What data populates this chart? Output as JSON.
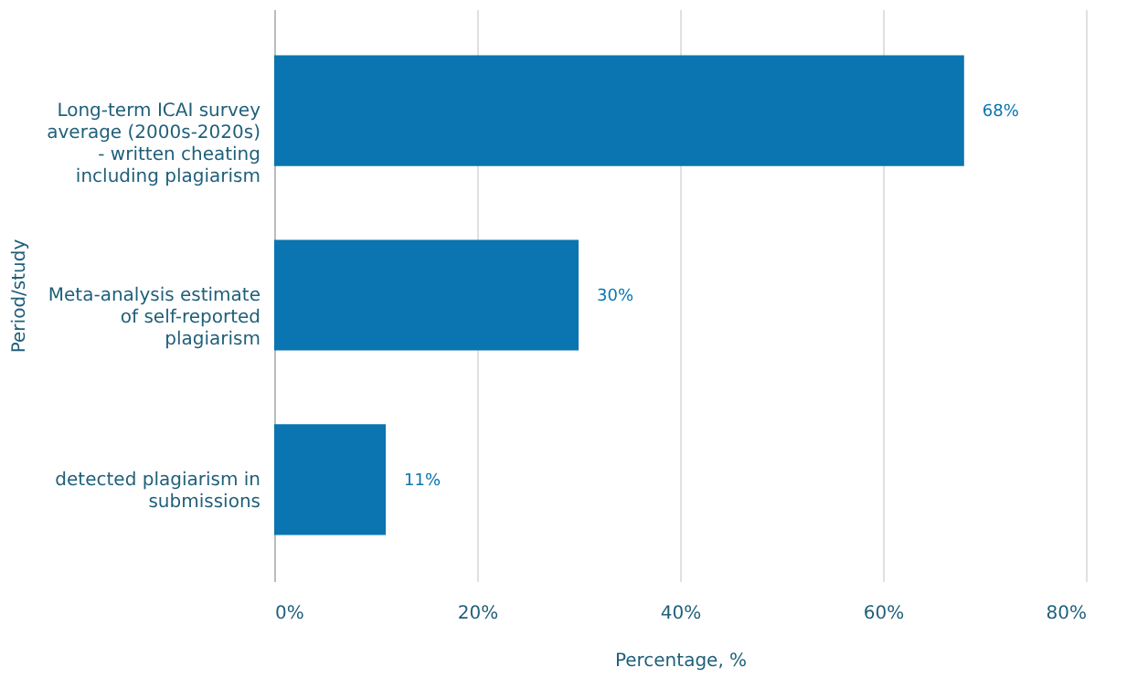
{
  "chart_data": {
    "type": "bar",
    "orientation": "horizontal",
    "xlabel": "Percentage, %",
    "ylabel": "Period/study",
    "categories": [
      "Long-term ICAI survey average (2000s-2020s) - written cheating including plagiarism",
      "Meta-analysis estimate of self-reported plagiarism",
      "detected plagiarism in submissions"
    ],
    "values": [
      68,
      30,
      11
    ],
    "value_labels": [
      "68%",
      "30%",
      "11%"
    ],
    "color": "#0a75b0",
    "xlim": [
      0,
      80
    ],
    "xticks": [
      {
        "value": 0,
        "label": "0%"
      },
      {
        "value": 20,
        "label": "20%"
      },
      {
        "value": 40,
        "label": "40%"
      },
      {
        "value": 60,
        "label": "60%"
      },
      {
        "value": 80,
        "label": "80%"
      }
    ],
    "grid": "x"
  }
}
